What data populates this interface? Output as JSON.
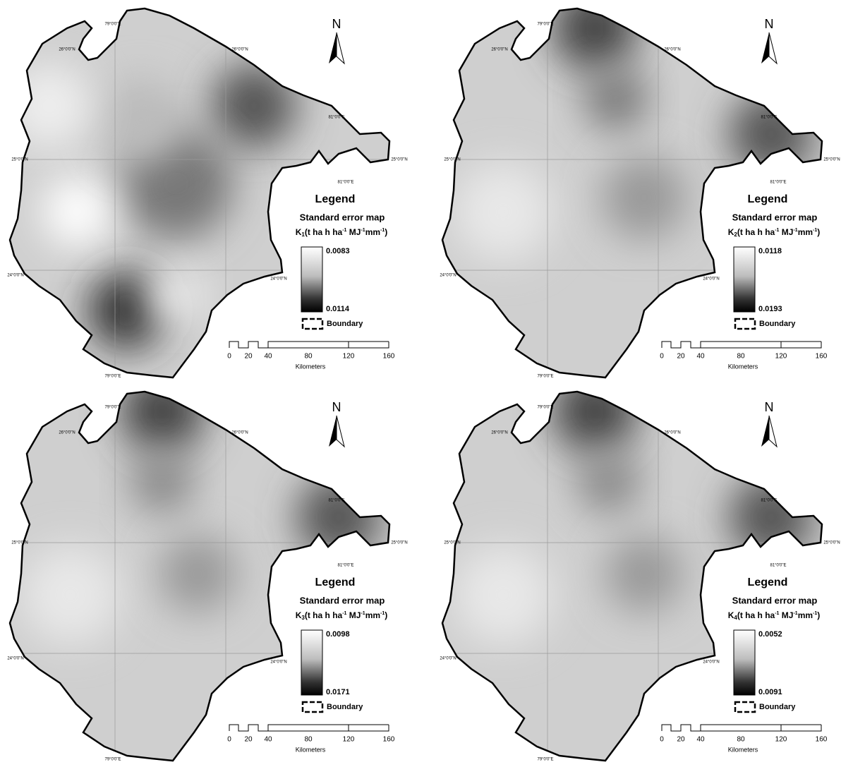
{
  "panels": [
    {
      "north": "N",
      "legend_title": "Legend",
      "legend_subtitle": "Standard error map",
      "symbol": "K",
      "subscript": "1",
      "unit": [
        "(t ha h ha",
        "-1",
        " MJ",
        "-1",
        "mm",
        "-1",
        ")"
      ],
      "max_label": "0.0083",
      "min_label": "0.0114",
      "boundary": "Boundary",
      "scale": [
        "0",
        "20",
        "40",
        "80",
        "120",
        "160"
      ],
      "scale_unit": "Kilometers",
      "grid_labels": [
        "26°0'0\"N",
        "79°0'0\"E",
        "25°0'0\"N",
        "24°0'0\"N",
        "81°0'0\"E"
      ]
    },
    {
      "north": "N",
      "legend_title": "Legend",
      "legend_subtitle": "Standard error map",
      "symbol": "K",
      "subscript": "2",
      "unit": [
        "(t ha h ha",
        "-1",
        " MJ",
        "-1",
        "mm",
        "-1",
        ")"
      ],
      "max_label": "0.0118",
      "min_label": "0.0193",
      "boundary": "Boundary",
      "scale": [
        "0",
        "20",
        "40",
        "80",
        "120",
        "160"
      ],
      "scale_unit": "Kilometers",
      "grid_labels": [
        "26°0'0\"N",
        "79°0'0\"E",
        "25°0'0\"N",
        "24°0'0\"N",
        "81°0'0\"E"
      ]
    },
    {
      "north": "N",
      "legend_title": "Legend",
      "legend_subtitle": "Standard error map",
      "symbol": "K",
      "subscript": "3",
      "unit": [
        "(t ha h ha",
        "-1",
        " MJ",
        "-1",
        "mm",
        "-1",
        ")"
      ],
      "max_label": "0.0098",
      "min_label": "0.0171",
      "boundary": "Boundary",
      "scale": [
        "0",
        "20",
        "40",
        "80",
        "120",
        "160"
      ],
      "scale_unit": "Kilometers",
      "grid_labels": [
        "26°0'0\"N",
        "79°0'0\"E",
        "25°0'0\"N",
        "24°0'0\"N",
        "81°0'0\"E"
      ]
    },
    {
      "north": "N",
      "legend_title": "Legend",
      "legend_subtitle": "Standard error map",
      "symbol": "K",
      "subscript": "4",
      "unit": [
        "(t ha h ha",
        "-1",
        " MJ",
        "-1",
        "mm",
        "-1",
        ")"
      ],
      "max_label": "0.0052",
      "min_label": "0.0091",
      "boundary": "Boundary",
      "scale": [
        "0",
        "20",
        "40",
        "80",
        "120",
        "160"
      ],
      "scale_unit": "Kilometers",
      "grid_labels": [
        "26°0'0\"N",
        "79°0'0\"E",
        "25°0'0\"N",
        "24°0'0\"N",
        "81°0'0\"E"
      ]
    }
  ]
}
